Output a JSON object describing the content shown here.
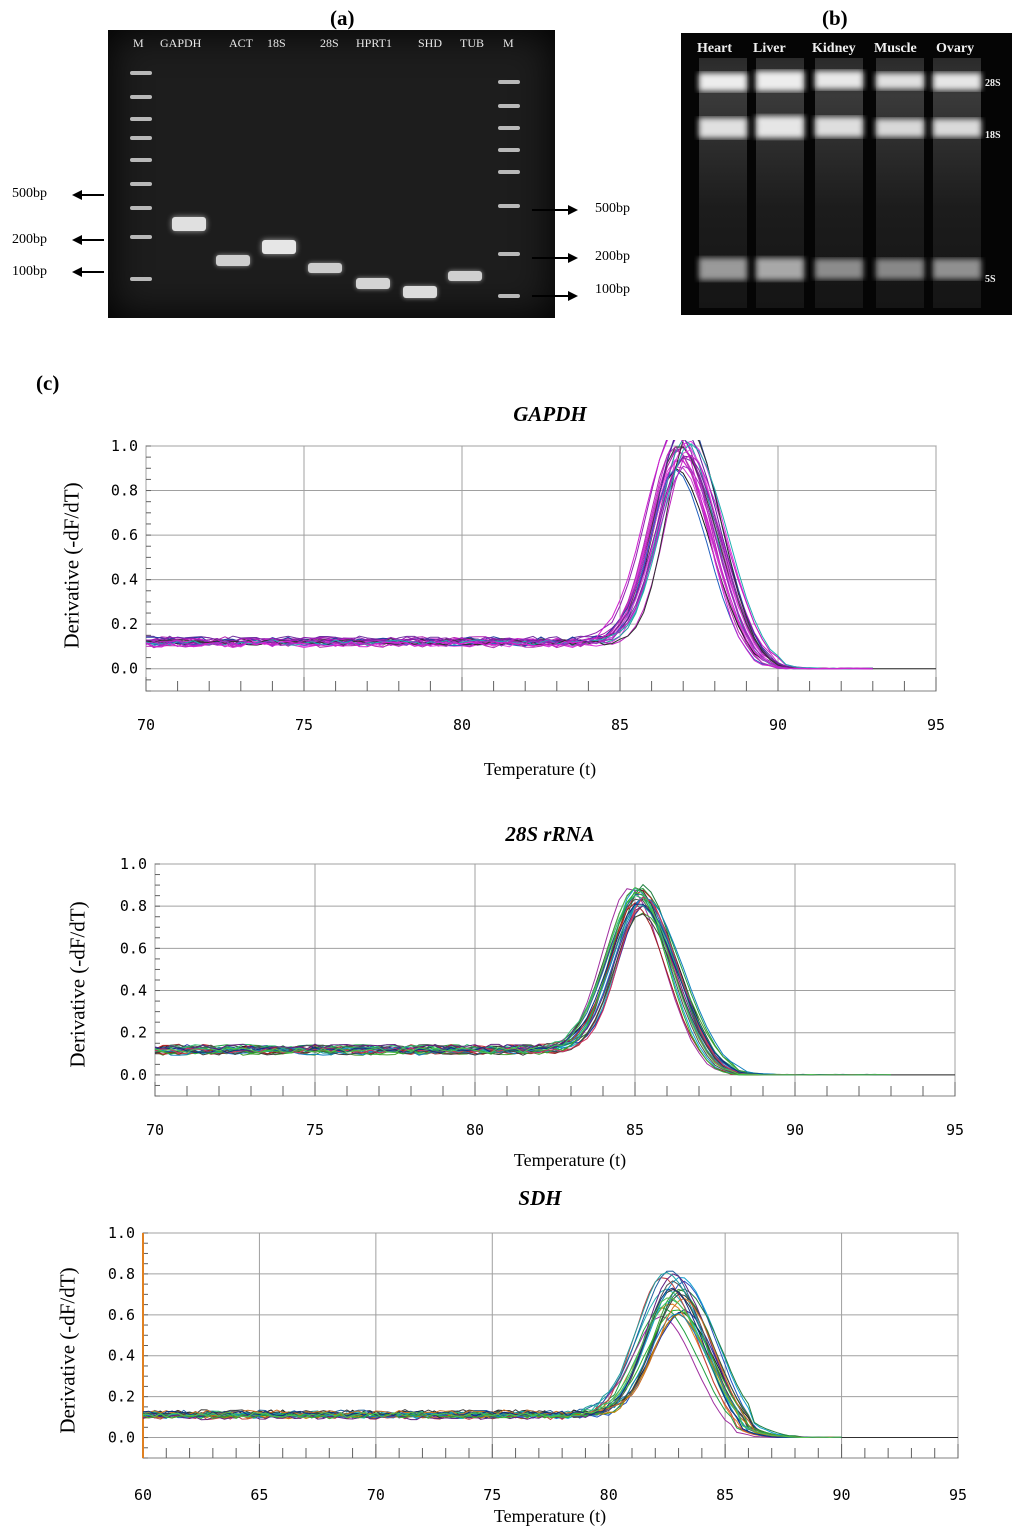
{
  "panel_a": {
    "label": "(a)",
    "lanes": [
      "M",
      "GAPDH",
      "ACT",
      "18S",
      "28S",
      "HPRT1",
      "SHD",
      "TUB",
      "M"
    ],
    "left_markers": [
      "500bp",
      "200bp",
      "100bp"
    ],
    "right_markers": [
      "500bp",
      "200bp",
      "100bp"
    ]
  },
  "panel_b": {
    "label": "(b)",
    "lanes": [
      "Heart",
      "Liver",
      "Kidney",
      "Muscle",
      "Ovary"
    ],
    "bands": [
      "28S",
      "18S",
      "5S"
    ]
  },
  "panel_c": {
    "label": "(c)"
  },
  "colors": {
    "magenta": "#cc22cc",
    "gel_bg": "#1d1d1d"
  },
  "chart_data": [
    {
      "type": "line",
      "title": "GAPDH",
      "xlabel": "Temperature (t)",
      "ylabel": "Derivative (-dF/dT)",
      "xlim": [
        70,
        95
      ],
      "ylim": [
        -0.1,
        1.0
      ],
      "x_ticks": [
        70,
        75,
        80,
        85,
        90,
        95
      ],
      "y_ticks": [
        0.0,
        0.2,
        0.4,
        0.6,
        0.8,
        1.0
      ],
      "grid": true,
      "peak_temperature": 87.0,
      "peak_range": [
        0.78,
        0.99
      ],
      "baseline": 0.12,
      "series_count": 24
    },
    {
      "type": "line",
      "title": "28S rRNA",
      "xlabel": "Temperature (t)",
      "ylabel": "Derivative (-dF/dT)",
      "xlim": [
        70,
        95
      ],
      "ylim": [
        -0.1,
        1.0
      ],
      "x_ticks": [
        70,
        75,
        80,
        85,
        90,
        95
      ],
      "y_ticks": [
        0.0,
        0.2,
        0.4,
        0.6,
        0.8,
        1.0
      ],
      "grid": true,
      "peak_temperature": 85.1,
      "peak_range": [
        0.66,
        0.78
      ],
      "baseline": 0.12,
      "series_count": 24
    },
    {
      "type": "line",
      "title": "SDH",
      "xlabel": "Temperature (t)",
      "ylabel": "Derivative (-dF/dT)",
      "xlim": [
        60,
        95
      ],
      "ylim": [
        -0.1,
        1.0
      ],
      "x_ticks": [
        60,
        65,
        70,
        75,
        80,
        85,
        90,
        95
      ],
      "y_ticks": [
        0.0,
        0.2,
        0.4,
        0.6,
        0.8,
        1.0
      ],
      "grid": true,
      "peak_temperature": 82.8,
      "peak_range": [
        0.48,
        0.7
      ],
      "baseline": 0.11,
      "series_count": 24
    }
  ]
}
